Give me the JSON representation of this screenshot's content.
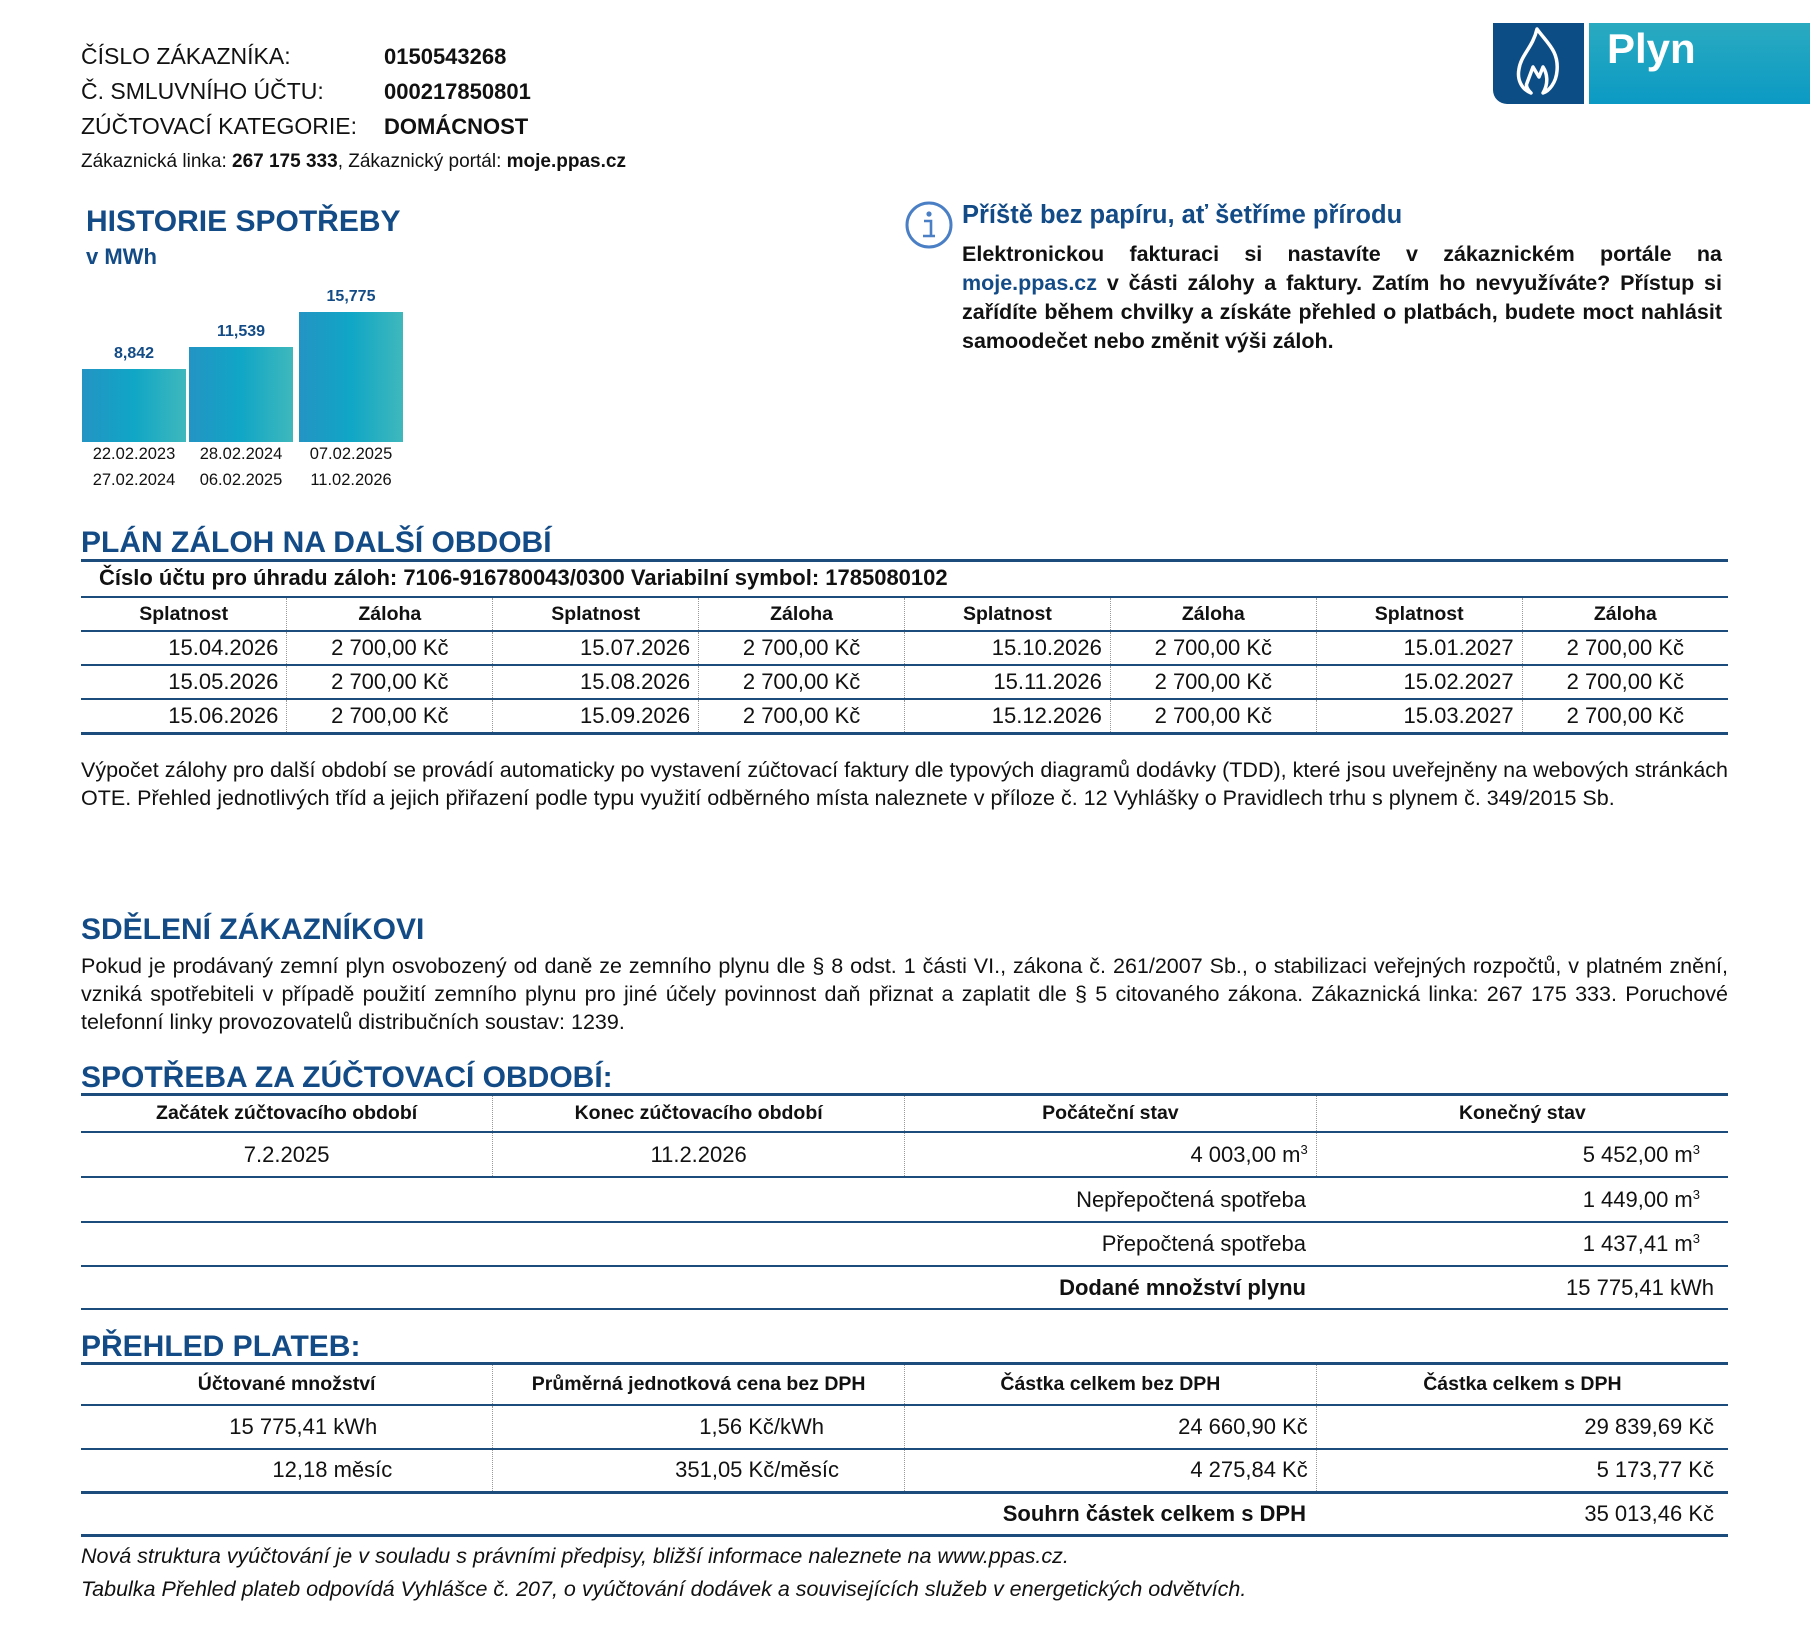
{
  "header": {
    "customer_no_label": "ČÍSLO ZÁKAZNÍKA:",
    "customer_no": "0150543268",
    "contract_no_label": "Č. SMLUVNÍHO ÚČTU:",
    "contract_no": "000217850801",
    "category_label": "ZÚČTOVACÍ KATEGORIE:",
    "category": "DOMÁCNOST",
    "hotline_label": "Zákaznická linka: ",
    "hotline": "267 175 333",
    "portal_label": ", Zákaznický portál: ",
    "portal": "moje.ppas.cz"
  },
  "logo": {
    "text": "Plyn",
    "icon": "flame-icon",
    "colors": {
      "dark": "#0d4d86",
      "light": "#1aa3c3"
    }
  },
  "chart_data": {
    "type": "bar",
    "title": "HISTORIE SPOTŘEBY",
    "subtitle": "v MWh",
    "categories": [
      {
        "from": "22.02.2023",
        "to": "27.02.2024"
      },
      {
        "from": "28.02.2024",
        "to": "06.02.2025"
      },
      {
        "from": "07.02.2025",
        "to": "11.02.2026"
      }
    ],
    "values": [
      8.842,
      11.539,
      15.775
    ],
    "labels": [
      "8,842",
      "11,539",
      "15,775"
    ],
    "ylim": [
      0,
      15.775
    ],
    "grid": false
  },
  "info": {
    "icon": "info-icon",
    "title": "Příště bez papíru, ať šetříme přírodu",
    "text_1": "Elektronickou fakturaci si nastavíte v zákaznickém portále na ",
    "link": "moje.ppas.cz",
    "text_2": " v části zálohy a faktury. Zatím ho nevyužíváte? Přístup si zařídíte během chvilky a získáte přehled o platbách, budete moct nahlásit samoodečet nebo změnit výši záloh."
  },
  "plan": {
    "title": "PLÁN ZÁLOH NA DALŠÍ OBDOBÍ",
    "account_line": "Číslo účtu pro úhradu záloh: 7106-916780043/0300 Variabilní symbol: 1785080102",
    "headers": [
      "Splatnost",
      "Záloha",
      "Splatnost",
      "Záloha",
      "Splatnost",
      "Záloha",
      "Splatnost",
      "Záloha"
    ],
    "rows": [
      [
        "15.04.2026",
        "2 700,00 Kč",
        "15.07.2026",
        "2 700,00 Kč",
        "15.10.2026",
        "2 700,00 Kč",
        "15.01.2027",
        "2 700,00 Kč"
      ],
      [
        "15.05.2026",
        "2 700,00 Kč",
        "15.08.2026",
        "2 700,00 Kč",
        "15.11.2026",
        "2 700,00 Kč",
        "15.02.2027",
        "2 700,00 Kč"
      ],
      [
        "15.06.2026",
        "2 700,00 Kč",
        "15.09.2026",
        "2 700,00 Kč",
        "15.12.2026",
        "2 700,00 Kč",
        "15.03.2027",
        "2 700,00 Kč"
      ]
    ],
    "note": "Výpočet zálohy pro další období se provádí automaticky po vystavení zúčtovací faktury dle typových diagramů dodávky (TDD), které jsou uveřejněny na webových stránkách OTE. Přehled jednotlivých tříd a jejich přiřazení podle typu využití odběrného místa naleznete v příloze č. 12 Vyhlášky o Pravidlech trhu s plynem č. 349/2015 Sb."
  },
  "notice": {
    "title": "SDĚLENÍ ZÁKAZNÍKOVI",
    "text": "Pokud je prodávaný zemní plyn osvobozený od daně ze zemního plynu dle § 8 odst. 1 části VI., zákona č. 261/2007 Sb., o stabilizaci veřejných rozpočtů, v platném znění, vzniká spotřebiteli v případě použití zemního plynu pro jiné účely povinnost daň přiznat a zaplatit dle § 5 citovaného zákona. Zákaznická linka: 267 175 333. Poruchové telefonní linky provozovatelů distribučních soustav: 1239."
  },
  "consumption": {
    "title": "SPOTŘEBA ZA ZÚČTOVACÍ OBDOBÍ:",
    "headers": [
      "Začátek zúčtovacího období",
      "Konec zúčtovacího období",
      "Počáteční stav",
      "Konečný stav"
    ],
    "start": "7.2.2025",
    "end": "11.2.2026",
    "initial": "4 003,00 m",
    "final": "5 452,00 m",
    "unit_sup": "3",
    "raw_label": "Nepřepočtená spotřeba",
    "raw_value": "1 449,00 m",
    "conv_label": "Přepočtená spotřeba",
    "conv_value": "1 437,41 m",
    "delivered_label": "Dodané množství plynu",
    "delivered_value": "15 775,41 kWh"
  },
  "payments": {
    "title": "PŘEHLED PLATEB:",
    "headers": [
      "Účtované množství",
      "Průměrná jednotková cena bez DPH",
      "Částka celkem bez DPH",
      "Částka celkem s DPH"
    ],
    "rows": [
      [
        "15 775,41 kWh",
        "1,56 Kč/kWh",
        "24 660,90 Kč",
        "29 839,69 Kč"
      ],
      [
        "12,18 měsíc",
        "351,05 Kč/měsíc",
        "4 275,84 Kč",
        "5 173,77 Kč"
      ]
    ],
    "total_label": "Souhrn částek celkem s DPH",
    "total_value": "35 013,46 Kč"
  },
  "footer": {
    "line_1": "Nová struktura vyúčtování je v souladu s právními předpisy, bližší informace naleznete na www.ppas.cz.",
    "line_2": "Tabulka Přehled plateb odpovídá Vyhlášce č. 207, o vyúčtování dodávek a souvisejících služeb v energetických odvětvích."
  }
}
